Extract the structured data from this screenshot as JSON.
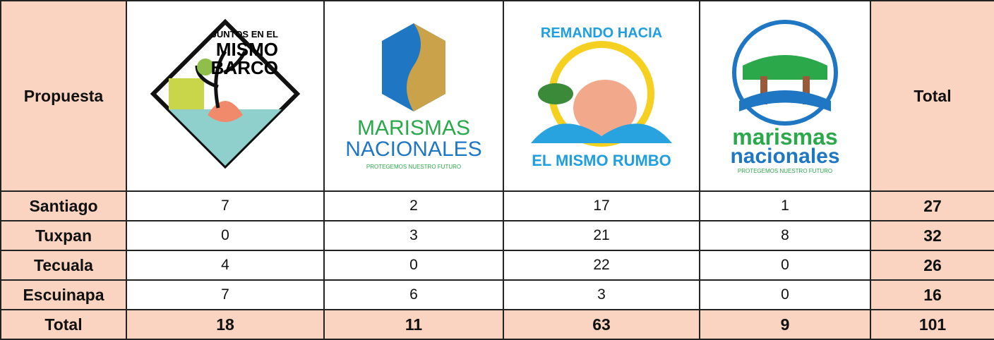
{
  "header": {
    "label": "Propuesta",
    "total": "Total",
    "logos": [
      {
        "lines": [
          "JUNTOS EN EL",
          "MISMO",
          "BARCO"
        ]
      },
      {
        "lines": [
          "MARISMAS",
          "NACIONALES",
          "PROTEGEMOS NUESTRO FUTURO"
        ]
      },
      {
        "lines": [
          "REMANDO HACIA",
          "EL MISMO RUMBO"
        ]
      },
      {
        "lines": [
          "marismas",
          "nacionales",
          "PROTEGEMOS NUESTRO FUTURO"
        ]
      }
    ]
  },
  "table": {
    "rows": [
      {
        "name": "Santiago",
        "values": [
          "7",
          "2",
          "17",
          "1"
        ],
        "total": "27"
      },
      {
        "name": "Tuxpan",
        "values": [
          "0",
          "3",
          "21",
          "8"
        ],
        "total": "32"
      },
      {
        "name": "Tecuala",
        "values": [
          "4",
          "0",
          "22",
          "0"
        ],
        "total": "26"
      },
      {
        "name": "Escuinapa",
        "values": [
          "7",
          "6",
          "3",
          "0"
        ],
        "total": "16"
      }
    ],
    "totals": {
      "name": "Total",
      "values": [
        "18",
        "11",
        "63",
        "9"
      ],
      "total": "101"
    }
  }
}
